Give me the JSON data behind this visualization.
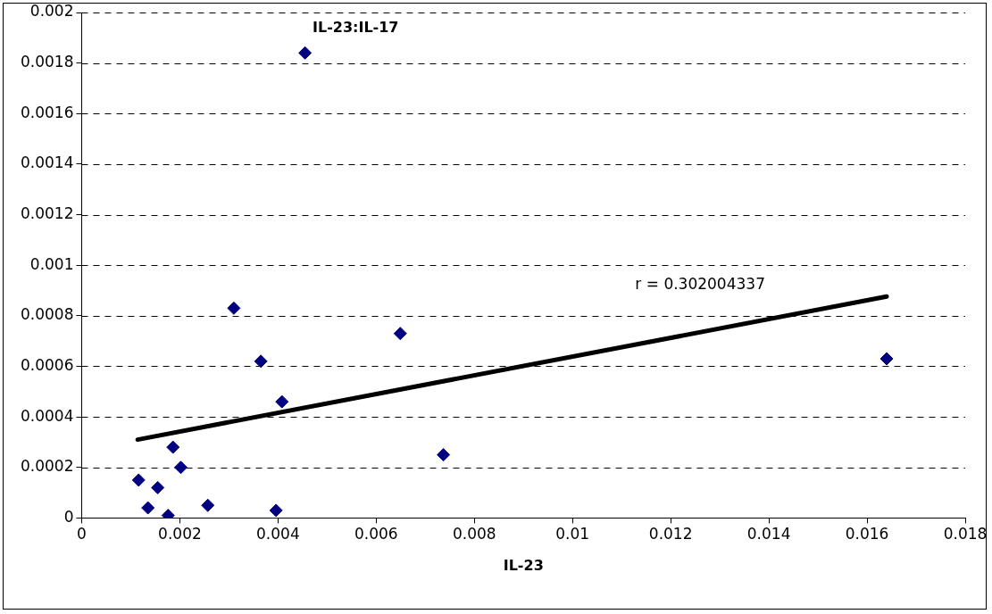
{
  "chart_data": {
    "type": "scatter",
    "title": "IL-23:IL-17",
    "xlabel": "IL-23",
    "xlim": [
      0,
      0.018
    ],
    "xticks": [
      0,
      0.002,
      0.004,
      0.006,
      0.008,
      0.01,
      0.012,
      0.014,
      0.016,
      0.018
    ],
    "ylim": [
      0,
      0.002
    ],
    "yticks": [
      0,
      0.0002,
      0.0004,
      0.0006,
      0.0008,
      0.001,
      0.0012,
      0.0014,
      0.0016,
      0.0018,
      0.002
    ],
    "grid": "y",
    "legend": false,
    "marker": "diamond",
    "annotations": [
      "r = 0.302004337"
    ],
    "series": [
      {
        "color": "#000080",
        "x": [
          0.00116,
          0.00135,
          0.00155,
          0.00176,
          0.00186,
          0.00202,
          0.00257,
          0.0031,
          0.00365,
          0.00396,
          0.00408,
          0.00455,
          0.00649,
          0.00737,
          0.0164
        ],
        "values": [
          0.00015,
          4e-05,
          0.00012,
          1e-05,
          0.00028,
          0.0002,
          5e-05,
          0.00083,
          0.00062,
          3e-05,
          0.00046,
          0.00184,
          0.00073,
          0.00025,
          0.00063
        ]
      },
      {
        "type": "line",
        "color": "#000000",
        "marker": "none",
        "x": [
          0.00114,
          0.0164
        ],
        "values": [
          0.00031,
          0.000876
        ]
      }
    ]
  }
}
